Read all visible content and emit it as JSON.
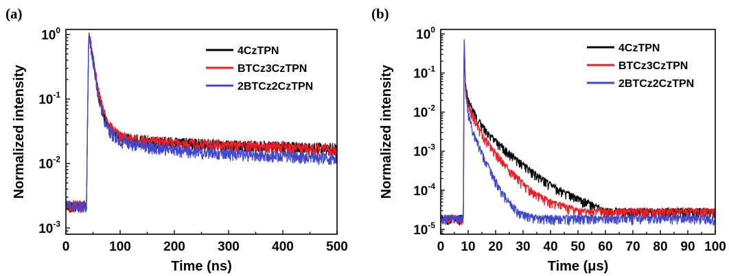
{
  "panels": [
    {
      "label": "(a)"
    },
    {
      "label": "(b)"
    }
  ],
  "chart_data": [
    {
      "type": "line",
      "xlabel": "Time (ns)",
      "ylabel": "Normalized intensity",
      "yscale": "log",
      "xlim": [
        0,
        500
      ],
      "ylim": [
        0.0008,
        1.2
      ],
      "xticks": [
        0,
        100,
        200,
        300,
        400,
        500
      ],
      "yticks": [
        {
          "base": "10",
          "exp": "0"
        },
        {
          "base": "10",
          "exp": "-1"
        },
        {
          "base": "10",
          "exp": "-2"
        },
        {
          "base": "10",
          "exp": "-3"
        }
      ],
      "legend_position": "top-right",
      "series": [
        {
          "name": "4CzTPN",
          "color": "#000000",
          "x": [
            0,
            38,
            40,
            42,
            45,
            50,
            55,
            60,
            70,
            80,
            100,
            150,
            200,
            300,
            400,
            500
          ],
          "y": [
            0.0022,
            0.0022,
            0.05,
            0.95,
            0.75,
            0.42,
            0.22,
            0.12,
            0.055,
            0.035,
            0.025,
            0.022,
            0.021,
            0.019,
            0.018,
            0.017
          ]
        },
        {
          "name": "BTCz3CzTPN",
          "color": "#ee1c25",
          "x": [
            0,
            38,
            40,
            42,
            45,
            50,
            55,
            60,
            70,
            80,
            100,
            150,
            200,
            300,
            400,
            500
          ],
          "y": [
            0.0022,
            0.0022,
            0.05,
            0.95,
            0.77,
            0.44,
            0.24,
            0.13,
            0.06,
            0.038,
            0.026,
            0.022,
            0.021,
            0.019,
            0.018,
            0.016
          ]
        },
        {
          "name": "2BTCz2CzTPN",
          "color": "#3f48cc",
          "x": [
            0,
            38,
            40,
            42,
            45,
            50,
            55,
            60,
            70,
            80,
            100,
            150,
            200,
            300,
            400,
            500
          ],
          "y": [
            0.0022,
            0.0022,
            0.05,
            0.95,
            0.73,
            0.4,
            0.21,
            0.11,
            0.05,
            0.032,
            0.022,
            0.018,
            0.016,
            0.014,
            0.013,
            0.012
          ]
        }
      ]
    },
    {
      "type": "line",
      "xlabel": "Time (μs)",
      "ylabel": "Normalized intensity",
      "yscale": "log",
      "xlim": [
        0,
        100
      ],
      "ylim": [
        7.5e-06,
        1.3
      ],
      "xticks": [
        0,
        10,
        20,
        30,
        40,
        50,
        60,
        70,
        80,
        90,
        100
      ],
      "yticks": [
        {
          "base": "10",
          "exp": "0"
        },
        {
          "base": "10",
          "exp": "-1"
        },
        {
          "base": "10",
          "exp": "-2"
        },
        {
          "base": "10",
          "exp": "-3"
        },
        {
          "base": "10",
          "exp": "-4"
        },
        {
          "base": "10",
          "exp": "-5"
        }
      ],
      "legend_position": "top-right",
      "series": [
        {
          "name": "4CzTPN",
          "color": "#000000",
          "x": [
            0,
            8.3,
            8.5,
            9,
            10,
            12,
            15,
            20,
            25,
            30,
            35,
            40,
            45,
            50,
            55,
            60,
            100
          ],
          "y": [
            2e-05,
            2e-05,
            1.0,
            0.05,
            0.02,
            0.01,
            0.0045,
            0.0018,
            0.0009,
            0.00045,
            0.00025,
            0.00014,
            9e-05,
            6e-05,
            4.5e-05,
            3e-05,
            3e-05
          ]
        },
        {
          "name": "BTCz3CzTPN",
          "color": "#ee1c25",
          "x": [
            0,
            8.3,
            8.5,
            9,
            10,
            12,
            15,
            20,
            25,
            30,
            35,
            40,
            45,
            50,
            100
          ],
          "y": [
            2e-05,
            2e-05,
            1.0,
            0.045,
            0.016,
            0.007,
            0.0028,
            0.0009,
            0.00035,
            0.00015,
            8e-05,
            5e-05,
            4e-05,
            3e-05,
            3e-05
          ]
        },
        {
          "name": "2BTCz2CzTPN",
          "color": "#3f48cc",
          "x": [
            0,
            8.3,
            8.5,
            9,
            10,
            12,
            15,
            18,
            20,
            22,
            25,
            28,
            30,
            35,
            100
          ],
          "y": [
            2e-05,
            2e-05,
            1.0,
            0.035,
            0.01,
            0.003,
            0.0009,
            0.00035,
            0.00018,
            0.0001,
            5e-05,
            3e-05,
            2.5e-05,
            2e-05,
            2e-05
          ]
        }
      ]
    }
  ]
}
